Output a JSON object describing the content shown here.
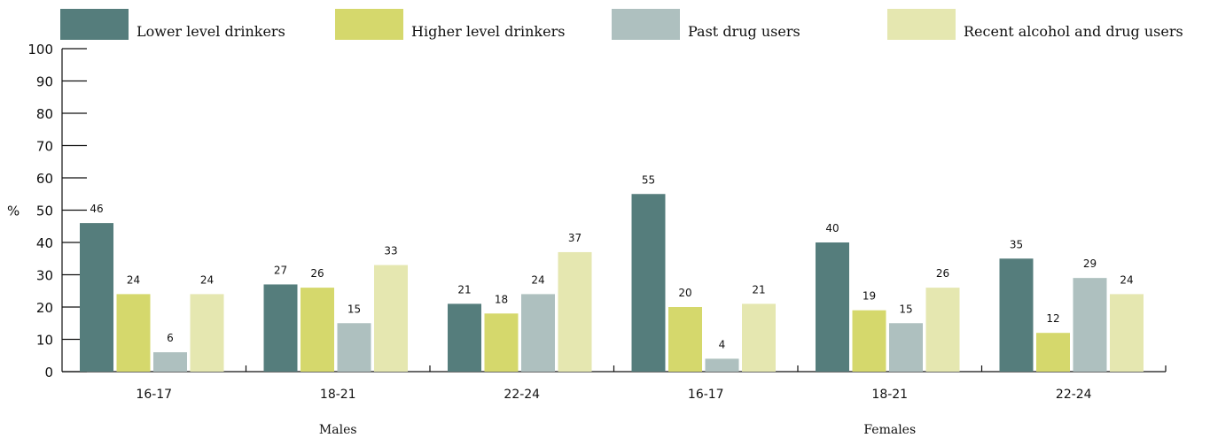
{
  "chart_data": {
    "type": "bar",
    "ylabel": "%",
    "ylim": [
      0,
      100
    ],
    "yticks": [
      0,
      10,
      20,
      30,
      40,
      50,
      60,
      70,
      80,
      90,
      100
    ],
    "grid": false,
    "legend_position": "top",
    "categories": [
      "16-17",
      "18-21",
      "22-24",
      "16-17",
      "18-21",
      "22-24"
    ],
    "groups": [
      {
        "label": "Males",
        "categories": [
          "16-17",
          "18-21",
          "22-24"
        ]
      },
      {
        "label": "Females",
        "categories": [
          "16-17",
          "18-21",
          "22-24"
        ]
      }
    ],
    "series": [
      {
        "name": "Lower level drinkers",
        "color": "#557d7c",
        "values": [
          46,
          27,
          21,
          55,
          40,
          35
        ]
      },
      {
        "name": "Higher level drinkers",
        "color": "#d5d86c",
        "values": [
          24,
          26,
          18,
          20,
          19,
          12
        ]
      },
      {
        "name": "Past drug users",
        "color": "#aec0bf",
        "values": [
          6,
          15,
          24,
          4,
          15,
          29
        ]
      },
      {
        "name": "Recent alcohol and drug users",
        "color": "#e5e7b0",
        "values": [
          24,
          33,
          37,
          21,
          26,
          24
        ]
      }
    ]
  }
}
